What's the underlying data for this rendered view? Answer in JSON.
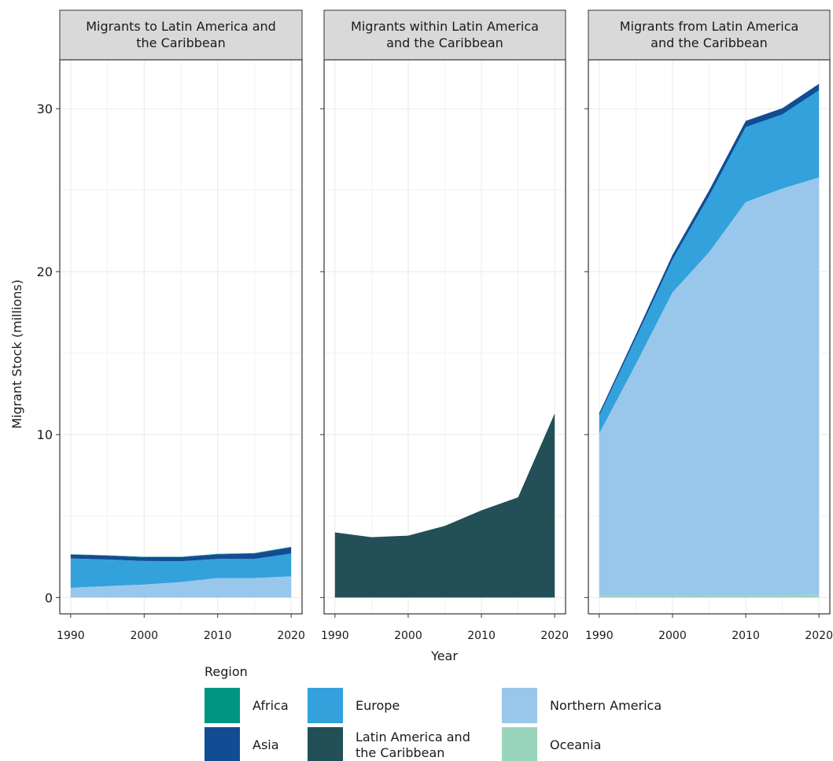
{
  "chart_data": {
    "type": "area",
    "stacked": true,
    "facets": [
      {
        "id": "to",
        "title_lines": [
          "Migrants to Latin America and",
          "the Caribbean"
        ]
      },
      {
        "id": "within",
        "title_lines": [
          "Migrants within Latin America",
          "and the Caribbean"
        ]
      },
      {
        "id": "from",
        "title_lines": [
          "Migrants from Latin America",
          "and the Caribbean"
        ]
      }
    ],
    "x": [
      1990,
      1995,
      2000,
      2005,
      2010,
      2015,
      2020
    ],
    "x_ticks": [
      "1990",
      "2000",
      "2010",
      "2020"
    ],
    "xlim": [
      1990,
      2020
    ],
    "y_ticks": [
      "0",
      "10",
      "20",
      "30"
    ],
    "ylim": [
      -1,
      33
    ],
    "xlabel": "Year",
    "ylabel": "Migrant Stock (millions)",
    "grid": true,
    "legend_title": "Region",
    "stack_order": [
      "Oceania",
      "Northern America",
      "Latin America and the Caribbean",
      "Europe",
      "Asia",
      "Africa"
    ],
    "series": [
      {
        "name": "Africa",
        "color": "#009483",
        "values": {
          "to": [
            0.02,
            0.02,
            0.02,
            0.02,
            0.03,
            0.03,
            0.04
          ],
          "within": [
            0,
            0,
            0,
            0,
            0,
            0,
            0
          ],
          "from": [
            0,
            0,
            0,
            0,
            0,
            0,
            0
          ]
        }
      },
      {
        "name": "Asia",
        "color": "#124d93",
        "values": {
          "to": [
            0.24,
            0.24,
            0.24,
            0.25,
            0.28,
            0.33,
            0.38
          ],
          "within": [
            0,
            0,
            0,
            0,
            0,
            0,
            0
          ],
          "from": [
            0.15,
            0.22,
            0.3,
            0.35,
            0.38,
            0.38,
            0.4
          ]
        }
      },
      {
        "name": "Europe",
        "color": "#33a1dc",
        "values": {
          "to": [
            1.8,
            1.63,
            1.44,
            1.28,
            1.17,
            1.17,
            1.4
          ],
          "within": [
            0,
            0,
            0,
            0,
            0,
            0,
            0
          ],
          "from": [
            1.1,
            1.6,
            2.0,
            3.45,
            4.6,
            4.55,
            5.35
          ]
        }
      },
      {
        "name": "Latin America and the Caribbean",
        "color": "#234f57",
        "values": {
          "to": [
            0,
            0,
            0,
            0,
            0,
            0,
            0
          ],
          "within": [
            4.0,
            3.7,
            3.8,
            4.4,
            5.35,
            6.15,
            11.3
          ],
          "from": [
            0,
            0,
            0,
            0,
            0,
            0,
            0
          ]
        }
      },
      {
        "name": "Northern America",
        "color": "#99c7eb",
        "values": {
          "to": [
            0.6,
            0.7,
            0.8,
            0.95,
            1.2,
            1.2,
            1.3
          ],
          "within": [
            0,
            0,
            0,
            0,
            0,
            0,
            0
          ],
          "from": [
            9.95,
            14.2,
            18.6,
            21.05,
            24.13,
            24.95,
            25.6
          ]
        }
      },
      {
        "name": "Oceania",
        "color": "#99d4bd",
        "values": {
          "to": [
            0,
            0,
            0,
            0,
            0,
            0,
            0
          ],
          "within": [
            0,
            0,
            0,
            0,
            0,
            0,
            0
          ],
          "from": [
            0.12,
            0.12,
            0.13,
            0.14,
            0.14,
            0.15,
            0.18
          ]
        }
      }
    ],
    "legend_columns": [
      [
        "Africa",
        "Asia"
      ],
      [
        "Europe",
        "Latin America and the Caribbean"
      ],
      [
        "Northern America",
        "Oceania"
      ]
    ],
    "legend_labels": {
      "Africa": [
        "Africa"
      ],
      "Asia": [
        "Asia"
      ],
      "Europe": [
        "Europe"
      ],
      "Latin America and the Caribbean": [
        "Latin America and",
        "the Caribbean"
      ],
      "Northern America": [
        "Northern America"
      ],
      "Oceania": [
        "Oceania"
      ]
    }
  }
}
